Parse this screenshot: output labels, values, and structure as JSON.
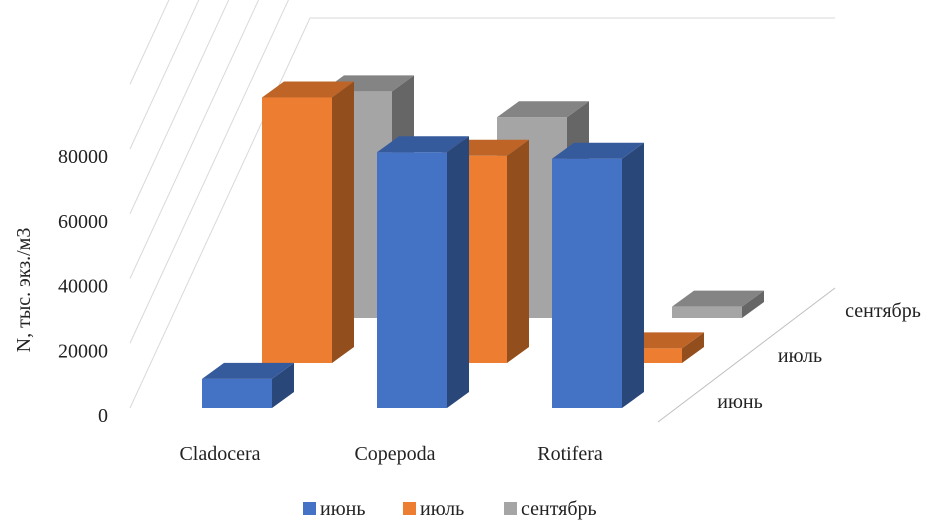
{
  "chart_data": {
    "type": "bar",
    "three_d": true,
    "categories": [
      "Cladocera",
      "Copepoda",
      "Rotifera"
    ],
    "depth_labels": [
      "июнь",
      "июль",
      "сентябрь"
    ],
    "series": [
      {
        "name": "июнь",
        "color": "#4472C4",
        "values": [
          9000,
          79000,
          77000
        ]
      },
      {
        "name": "июль",
        "color": "#ED7D31",
        "values": [
          82000,
          64000,
          4500
        ]
      },
      {
        "name": "сентябрь",
        "color": "#A5A5A5",
        "values": [
          70000,
          62000,
          3500
        ]
      }
    ],
    "yticks": [
      "0",
      "20000",
      "40000",
      "60000",
      "80000"
    ],
    "ylabel": "N, тыс. экз./м3",
    "ylim": [
      0,
      100000
    ],
    "grid": true,
    "legend": "bottom"
  }
}
